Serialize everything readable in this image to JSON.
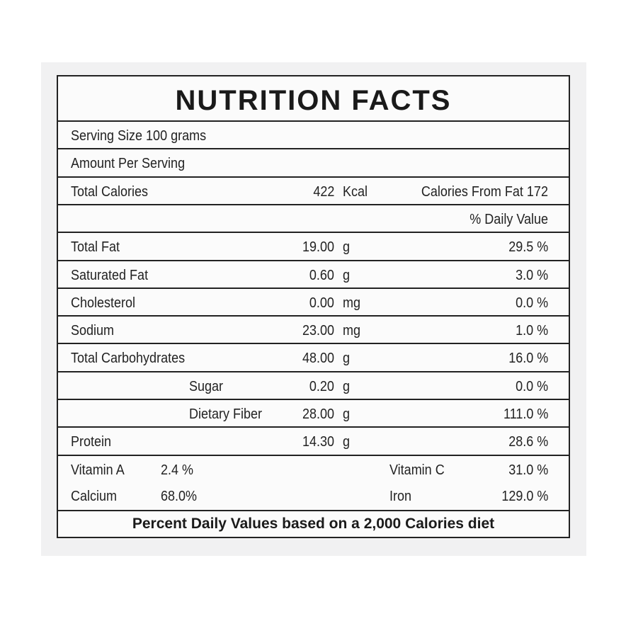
{
  "title": "NUTRITION FACTS",
  "serving_size": "Serving Size 100 grams",
  "amount_per_serving": "Amount Per Serving",
  "calories": {
    "label": "Total Calories",
    "amount": "422",
    "unit": "Kcal",
    "from_fat": "Calories From Fat 172"
  },
  "daily_value_header": "% Daily Value",
  "nutrients": [
    {
      "name": "Total Fat",
      "amount": "19.00",
      "unit": "g",
      "daily_value": "29.5 %"
    },
    {
      "name": "Saturated Fat",
      "amount": "0.60",
      "unit": "g",
      "daily_value": "3.0 %"
    },
    {
      "name": "Cholesterol",
      "amount": "0.00",
      "unit": "mg",
      "daily_value": "0.0 %"
    },
    {
      "name": "Sodium",
      "amount": "23.00",
      "unit": "mg",
      "daily_value": "1.0 %"
    },
    {
      "name": "Total Carbohydrates",
      "amount": "48.00",
      "unit": "g",
      "daily_value": "16.0 %",
      "components": [
        {
          "name": "Sugar",
          "amount": "0.20",
          "unit": "g",
          "daily_value": "0.0 %"
        },
        {
          "name": "Dietary Fiber",
          "amount": "28.00",
          "unit": "g",
          "daily_value": "111.0 %"
        }
      ]
    },
    {
      "name": "Protein",
      "amount": "14.30",
      "unit": "g",
      "daily_value": "28.6 %"
    }
  ],
  "vitamins": [
    {
      "name": "Vitamin A",
      "value": "2.4 %"
    },
    {
      "name": "Vitamin C",
      "value": "31.0 %"
    },
    {
      "name": "Calcium",
      "value": "68.0%"
    },
    {
      "name": "Iron",
      "value": "129.0 %"
    }
  ],
  "footer": "Percent Daily Values based on a 2,000 Calories diet"
}
